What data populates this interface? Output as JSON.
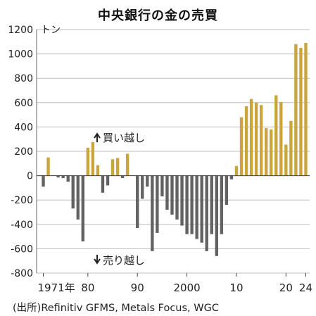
{
  "chart_data": {
    "type": "bar",
    "title": "中央銀行の金の売買",
    "unit": "トン",
    "ylim": [
      -800,
      1200
    ],
    "yticks": [
      1200,
      1000,
      800,
      600,
      400,
      200,
      0,
      -200,
      -400,
      -600,
      -800
    ],
    "x_tick_labels": [
      {
        "year": 1971,
        "label": "1971年"
      },
      {
        "year": 1980,
        "label": "80"
      },
      {
        "year": 1990,
        "label": "90"
      },
      {
        "year": 2000,
        "label": "2000"
      },
      {
        "year": 2010,
        "label": "10"
      },
      {
        "year": 2020,
        "label": "20"
      },
      {
        "year": 2024,
        "label": "24"
      }
    ],
    "grid": true,
    "annotations": {
      "buy": "買い越し",
      "sell": "売り越し"
    },
    "colors": {
      "buy": "#c9a53c",
      "sell": "#626262",
      "grid": "#bdbdbd"
    },
    "x": [
      1971,
      1972,
      1973,
      1974,
      1975,
      1976,
      1977,
      1978,
      1979,
      1980,
      1981,
      1982,
      1983,
      1984,
      1985,
      1986,
      1987,
      1988,
      1989,
      1990,
      1991,
      1992,
      1993,
      1994,
      1995,
      1996,
      1997,
      1998,
      1999,
      2000,
      2001,
      2002,
      2003,
      2004,
      2005,
      2006,
      2007,
      2008,
      2009,
      2010,
      2011,
      2012,
      2013,
      2014,
      2015,
      2016,
      2017,
      2018,
      2019,
      2020,
      2021,
      2022,
      2023,
      2024
    ],
    "values": [
      -90,
      150,
      0,
      -15,
      -20,
      -50,
      -270,
      -360,
      -540,
      230,
      275,
      85,
      -140,
      -80,
      135,
      145,
      -20,
      180,
      0,
      -430,
      -190,
      -90,
      -620,
      -470,
      -170,
      -280,
      -320,
      -360,
      -410,
      -480,
      -480,
      -520,
      -550,
      -620,
      -480,
      -660,
      -480,
      -240,
      -30,
      80,
      480,
      570,
      630,
      600,
      580,
      390,
      380,
      660,
      605,
      255,
      450,
      1080,
      1050,
      1090
    ]
  },
  "source": "(出所)Refinitiv GFMS, Metals Focus, WGC"
}
